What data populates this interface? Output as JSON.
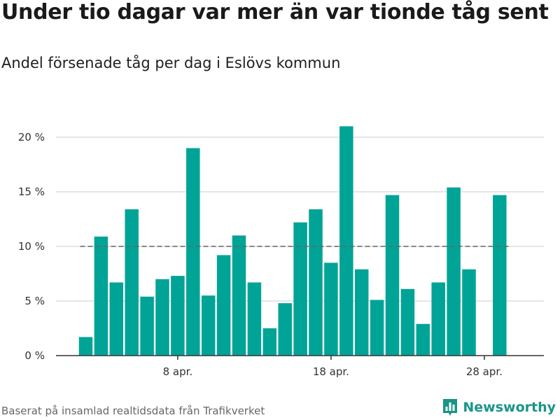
{
  "header": {
    "title": "Under tio dagar var mer än var tionde tåg sent",
    "subtitle": "Andel försenade tåg per dag i Eslövs kommun"
  },
  "footer": {
    "source": "Baserat på insamlad realtidsdata från Trafikverket",
    "brand": "Newsworthy",
    "brand_icon": "bar-chart-icon"
  },
  "colors": {
    "bar": "#00a496",
    "grid": "#dddddd",
    "axis": "#333333",
    "reference_line": "#666666",
    "brand": "#1a9588"
  },
  "chart_data": {
    "type": "bar",
    "title": "Under tio dagar var mer än var tionde tåg sent",
    "subtitle": "Andel försenade tåg per dag i Eslövs kommun",
    "x_tick_labels": [
      {
        "day": 8,
        "label": "8 apr."
      },
      {
        "day": 18,
        "label": "18 apr."
      },
      {
        "day": 28,
        "label": "28 apr."
      }
    ],
    "days": [
      2,
      3,
      4,
      5,
      6,
      7,
      8,
      9,
      10,
      11,
      12,
      13,
      14,
      15,
      16,
      17,
      18,
      19,
      20,
      21,
      22,
      23,
      24,
      25,
      26,
      27,
      28,
      29
    ],
    "values": [
      1.7,
      10.9,
      6.7,
      13.4,
      5.4,
      7.0,
      7.3,
      19.0,
      5.5,
      9.2,
      11.0,
      6.7,
      2.5,
      4.8,
      12.2,
      13.4,
      8.5,
      21.0,
      7.9,
      5.1,
      14.7,
      6.1,
      2.9,
      6.7,
      15.4,
      7.9,
      null,
      14.7
    ],
    "y_ticks": [
      {
        "value": 0,
        "label": "0 %"
      },
      {
        "value": 5,
        "label": "5 %"
      },
      {
        "value": 10,
        "label": "10 %"
      },
      {
        "value": 15,
        "label": "15 %"
      },
      {
        "value": 20,
        "label": "20 %"
      }
    ],
    "ylim": [
      0,
      21
    ],
    "reference_line": {
      "value": 10,
      "style": "dashed"
    },
    "grid": true,
    "unit": "%"
  }
}
